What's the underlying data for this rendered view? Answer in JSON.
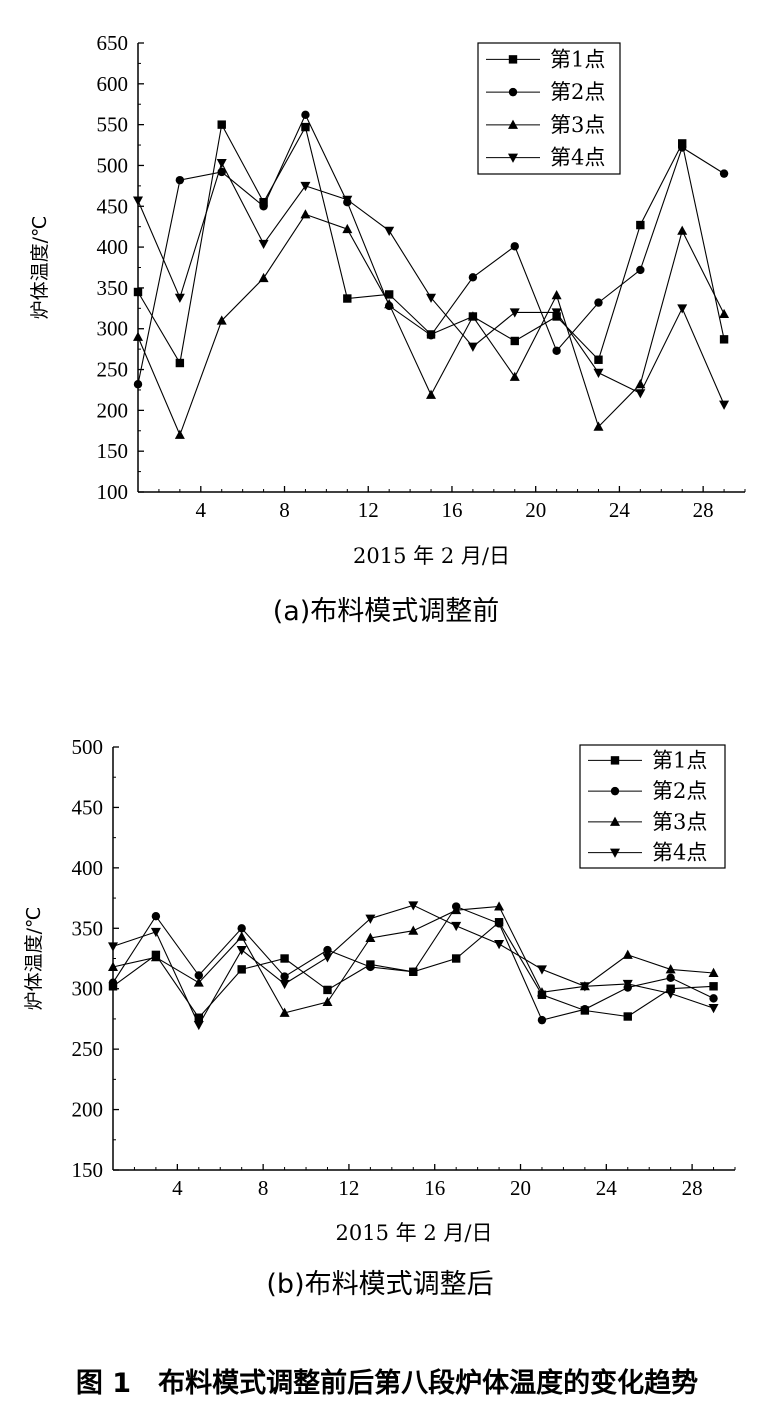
{
  "figure_caption": "图 1　布料模式调整前后第八段炉体温度的变化趋势",
  "chart_data": [
    {
      "type": "line",
      "subtitle": "(a)布料模式调整前",
      "xlabel": "2015 年 2 月/日",
      "ylabel": "炉体温度/℃",
      "xlim": [
        1,
        30
      ],
      "ylim": [
        100,
        650
      ],
      "xticks": [
        4,
        8,
        12,
        16,
        20,
        24,
        28
      ],
      "yticks": [
        100,
        150,
        200,
        250,
        300,
        350,
        400,
        450,
        500,
        550,
        600,
        650
      ],
      "x": [
        1,
        3,
        5,
        7,
        9,
        11,
        13,
        15,
        17,
        19,
        21,
        23,
        25,
        27,
        29
      ],
      "legend_position": "top-right",
      "series": [
        {
          "name": "第1点",
          "marker": "square",
          "values": [
            345,
            258,
            550,
            455,
            547,
            337,
            342,
            293,
            315,
            285,
            315,
            262,
            427,
            527,
            287
          ]
        },
        {
          "name": "第2点",
          "marker": "circle",
          "values": [
            232,
            482,
            492,
            450,
            562,
            455,
            328,
            292,
            363,
            401,
            273,
            332,
            372,
            522,
            490
          ]
        },
        {
          "name": "第3点",
          "marker": "triangle-up",
          "values": [
            290,
            170,
            310,
            362,
            440,
            422,
            330,
            219,
            315,
            241,
            341,
            180,
            232,
            420,
            318
          ]
        },
        {
          "name": "第4点",
          "marker": "triangle-down",
          "values": [
            457,
            338,
            503,
            404,
            475,
            458,
            420,
            338,
            278,
            320,
            320,
            246,
            221,
            325,
            207
          ]
        }
      ]
    },
    {
      "type": "line",
      "subtitle": "(b)布料模式调整后",
      "xlabel": "2015 年 2 月/日",
      "ylabel": "炉体温度/℃",
      "xlim": [
        1,
        30
      ],
      "ylim": [
        150,
        500
      ],
      "xticks": [
        4,
        8,
        12,
        16,
        20,
        24,
        28
      ],
      "yticks": [
        150,
        200,
        250,
        300,
        350,
        400,
        450,
        500
      ],
      "x": [
        1,
        3,
        5,
        7,
        9,
        11,
        13,
        15,
        17,
        19,
        21,
        23,
        25,
        27,
        29
      ],
      "legend_position": "top-right",
      "series": [
        {
          "name": "第1点",
          "marker": "square",
          "values": [
            302,
            328,
            276,
            316,
            325,
            299,
            320,
            314,
            325,
            355,
            295,
            282,
            277,
            300,
            302
          ]
        },
        {
          "name": "第2点",
          "marker": "circle",
          "values": [
            305,
            360,
            311,
            350,
            310,
            332,
            318,
            314,
            368,
            354,
            274,
            283,
            301,
            309,
            292
          ]
        },
        {
          "name": "第3点",
          "marker": "triangle-up",
          "values": [
            318,
            326,
            305,
            343,
            280,
            289,
            342,
            348,
            365,
            368,
            297,
            302,
            328,
            316,
            313
          ]
        },
        {
          "name": "第4点",
          "marker": "triangle-down",
          "values": [
            335,
            347,
            270,
            332,
            304,
            326,
            358,
            369,
            352,
            337,
            316,
            302,
            304,
            296,
            284
          ]
        }
      ]
    }
  ]
}
